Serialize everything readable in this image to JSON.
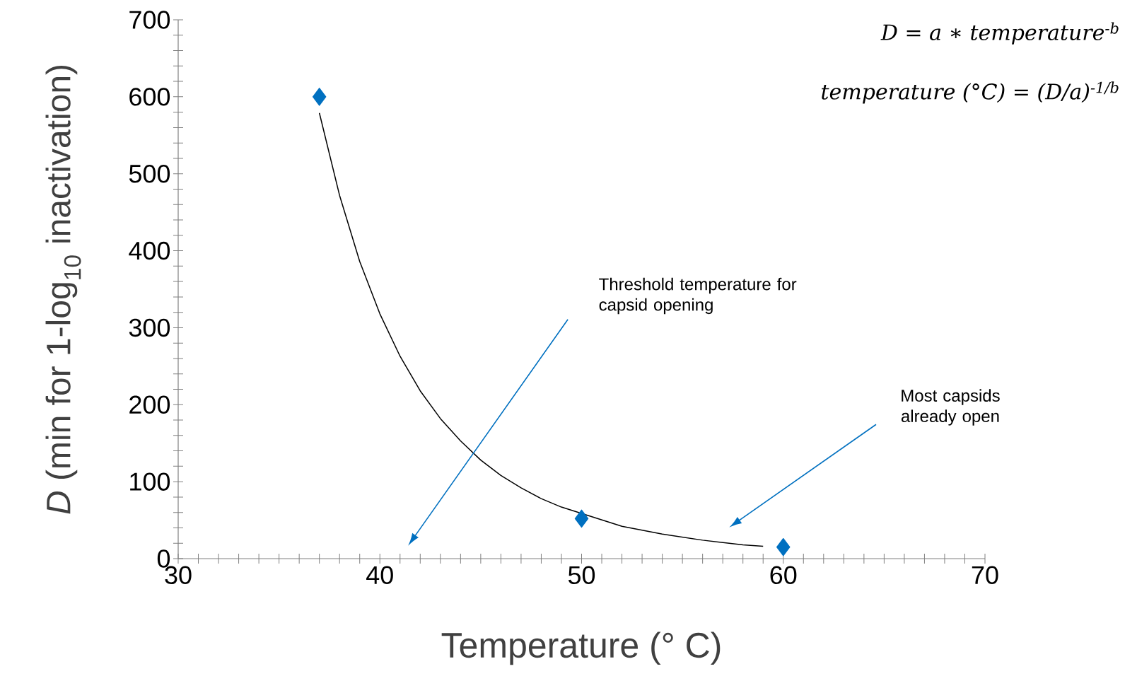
{
  "chart_data": {
    "type": "scatter",
    "xlabel": "Temperature (° C)",
    "ylabel": "*D* (min for 1-log$_{10}$ inactivation)",
    "xlim": [
      30,
      70
    ],
    "ylim": [
      0,
      700
    ],
    "xticks": [
      30,
      {
        "value": 31,
        "label": null
      },
      {
        "value": 32,
        "label": null
      },
      {
        "value": 33,
        "label": null
      },
      {
        "value": 34,
        "label": null
      },
      {
        "value": 35,
        "label": null
      },
      {
        "value": 36,
        "label": null
      },
      {
        "value": 37,
        "label": null
      },
      {
        "value": 38,
        "label": null
      },
      {
        "value": 39,
        "label": null
      },
      40,
      {
        "value": 41,
        "label": null
      },
      {
        "value": 42,
        "label": null
      },
      {
        "value": 43,
        "label": null
      },
      {
        "value": 44,
        "label": null
      },
      {
        "value": 45,
        "label": null
      },
      {
        "value": 46,
        "label": null
      },
      {
        "value": 47,
        "label": null
      },
      {
        "value": 48,
        "label": null
      },
      {
        "value": 49,
        "label": null
      },
      50,
      {
        "value": 51,
        "label": null
      },
      {
        "value": 52,
        "label": null
      },
      {
        "value": 53,
        "label": null
      },
      {
        "value": 54,
        "label": null
      },
      {
        "value": 55,
        "label": null
      },
      {
        "value": 56,
        "label": null
      },
      {
        "value": 57,
        "label": null
      },
      {
        "value": 58,
        "label": null
      },
      {
        "value": 59,
        "label": null
      },
      60,
      {
        "value": 61,
        "label": null
      },
      {
        "value": 62,
        "label": null
      },
      {
        "value": 63,
        "label": null
      },
      {
        "value": 64,
        "label": null
      },
      {
        "value": 65,
        "label": null
      },
      {
        "value": 66,
        "label": null
      },
      {
        "value": 67,
        "label": null
      },
      {
        "value": 68,
        "label": null
      },
      {
        "value": 69,
        "label": null
      },
      70
    ],
    "yticks": [
      0,
      {
        "value": 20,
        "label": null
      },
      {
        "value": 40,
        "label": null
      },
      {
        "value": 60,
        "label": null
      },
      {
        "value": 80,
        "label": null
      },
      100,
      {
        "value": 120,
        "label": null
      },
      {
        "value": 140,
        "label": null
      },
      {
        "value": 160,
        "label": null
      },
      {
        "value": 180,
        "label": null
      },
      200,
      {
        "value": 220,
        "label": null
      },
      {
        "value": 240,
        "label": null
      },
      {
        "value": 260,
        "label": null
      },
      {
        "value": 280,
        "label": null
      },
      300,
      {
        "value": 320,
        "label": null
      },
      {
        "value": 340,
        "label": null
      },
      {
        "value": 360,
        "label": null
      },
      {
        "value": 380,
        "label": null
      },
      400,
      {
        "value": 420,
        "label": null
      },
      {
        "value": 440,
        "label": null
      },
      {
        "value": 460,
        "label": null
      },
      {
        "value": 480,
        "label": null
      },
      500,
      {
        "value": 520,
        "label": null
      },
      {
        "value": 540,
        "label": null
      },
      {
        "value": 560,
        "label": null
      },
      {
        "value": 580,
        "label": null
      },
      600,
      {
        "value": 620,
        "label": null
      },
      {
        "value": 640,
        "label": null
      },
      {
        "value": 660,
        "label": null
      },
      {
        "value": 680,
        "label": null
      },
      700
    ],
    "grid": false,
    "series": [
      {
        "color": "#0070c0",
        "marker": "diamond",
        "x": [
          37,
          50,
          60
        ],
        "values": [
          600,
          52,
          15
        ]
      },
      {
        "type": "line",
        "color": "#000000",
        "marker": "none",
        "line_style": "solid",
        "x": [
          37,
          38,
          39,
          40,
          41,
          42,
          43,
          44,
          45,
          46,
          47,
          48,
          49,
          52,
          54,
          56,
          58,
          59
        ],
        "values": [
          579,
          472,
          386,
          318,
          263,
          218,
          182,
          153,
          128,
          108,
          92,
          78,
          67,
          42,
          32,
          24,
          18,
          16
        ]
      }
    ],
    "annotations": [
      "Threshold temperature for capsid opening",
      "Most capsids already open",
      "D = a ∗ temperature$^{-b}$",
      "temperature (°C) = (D/a)$^{-1/b}$"
    ]
  }
}
